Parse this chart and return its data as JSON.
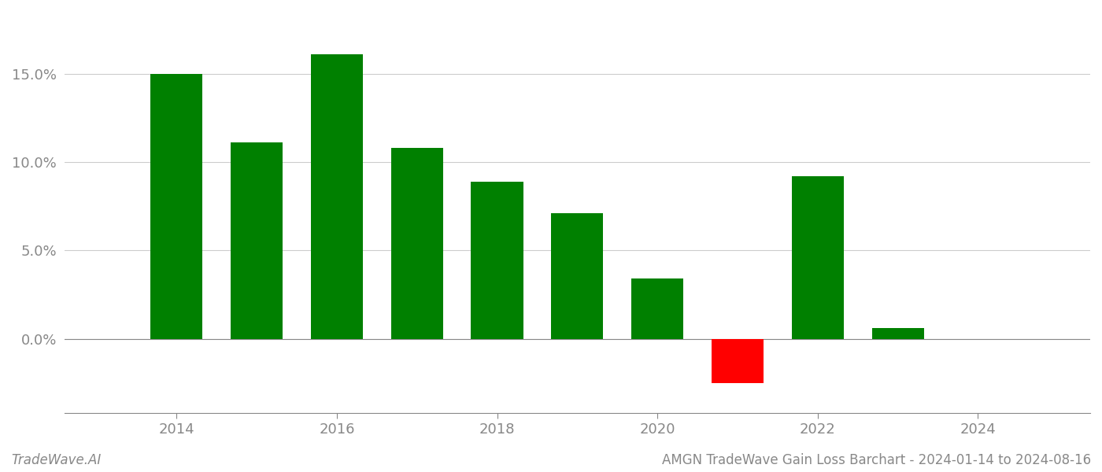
{
  "years": [
    2014,
    2015,
    2016,
    2017,
    2018,
    2019,
    2020,
    2021,
    2022,
    2023
  ],
  "values": [
    0.15,
    0.111,
    0.161,
    0.108,
    0.089,
    0.071,
    0.034,
    -0.025,
    0.092,
    0.006
  ],
  "colors": [
    "#008000",
    "#008000",
    "#008000",
    "#008000",
    "#008000",
    "#008000",
    "#008000",
    "#ff0000",
    "#008000",
    "#008000"
  ],
  "title": "AMGN TradeWave Gain Loss Barchart - 2024-01-14 to 2024-08-16",
  "watermark": "TradeWave.AI",
  "ylim_min": -0.042,
  "ylim_max": 0.185,
  "yticks": [
    0.0,
    0.05,
    0.1,
    0.15
  ],
  "ytick_labels": [
    "0.0%",
    "5.0%",
    "10.0%",
    "15.0%"
  ],
  "xlim_min": 2012.6,
  "xlim_max": 2025.4,
  "xticks": [
    2014,
    2016,
    2018,
    2020,
    2022,
    2024
  ],
  "background_color": "#ffffff",
  "grid_color": "#cccccc",
  "bar_width": 0.65
}
